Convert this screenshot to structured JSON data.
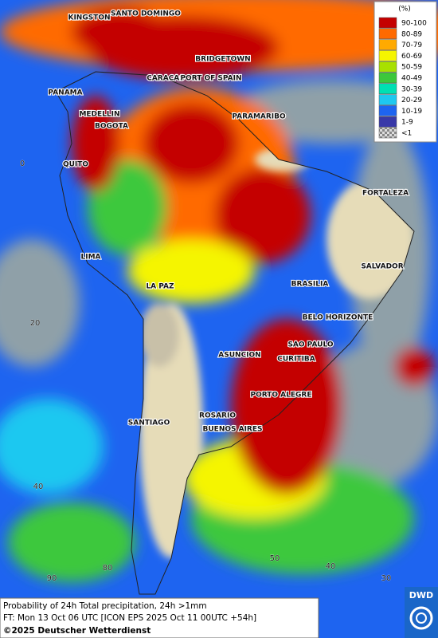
{
  "legend": {
    "title": "(%)",
    "items": [
      {
        "label": "90-100",
        "color": "#c40000"
      },
      {
        "label": "80-89",
        "color": "#ff6a00"
      },
      {
        "label": "70-79",
        "color": "#ffaa00"
      },
      {
        "label": "60-69",
        "color": "#f5f500"
      },
      {
        "label": "50-59",
        "color": "#a8e000"
      },
      {
        "label": "40-49",
        "color": "#3cc83c"
      },
      {
        "label": "30-39",
        "color": "#00e0b4"
      },
      {
        "label": "20-29",
        "color": "#1ec8f0"
      },
      {
        "label": "10-19",
        "color": "#1e64f0"
      },
      {
        "label": "1-9",
        "color": "#3838a8"
      },
      {
        "label": "<1",
        "color": "#a8a8a8"
      }
    ]
  },
  "cities": [
    {
      "name": "KINGSTON"
    },
    {
      "name": "SANTO DOMINGO"
    },
    {
      "name": "BRIDGETOWN"
    },
    {
      "name": "CARACAS"
    },
    {
      "name": "PORT OF SPAIN"
    },
    {
      "name": "PANAMA"
    },
    {
      "name": "MEDELLIN"
    },
    {
      "name": "BOGOTA"
    },
    {
      "name": "PARAMARIBO"
    },
    {
      "name": "QUITO"
    },
    {
      "name": "FORTALEZA"
    },
    {
      "name": "LIMA"
    },
    {
      "name": "SALVADOR"
    },
    {
      "name": "BRASILIA"
    },
    {
      "name": "LA PAZ"
    },
    {
      "name": "BELO HORIZONTE"
    },
    {
      "name": "SAO PAULO"
    },
    {
      "name": "ASUNCION"
    },
    {
      "name": "CURITIBA"
    },
    {
      "name": "PORTO ALEGRE"
    },
    {
      "name": "ROSARIO"
    },
    {
      "name": "SANTIAGO"
    },
    {
      "name": "BUENOS AIRES"
    }
  ],
  "grid_labels": [
    "0",
    "20",
    "40",
    "90",
    "80",
    "50",
    "40",
    "30"
  ],
  "caption": {
    "line1": "Probability of 24h Total precipitation, 24h >1mm",
    "line2": "FT: Mon 13 Oct 06 UTC [ICON EPS 2025 Oct 11 00UTC +54h]",
    "line3": "©2025 Deutscher Wetterdienst"
  },
  "logo": "DWD"
}
